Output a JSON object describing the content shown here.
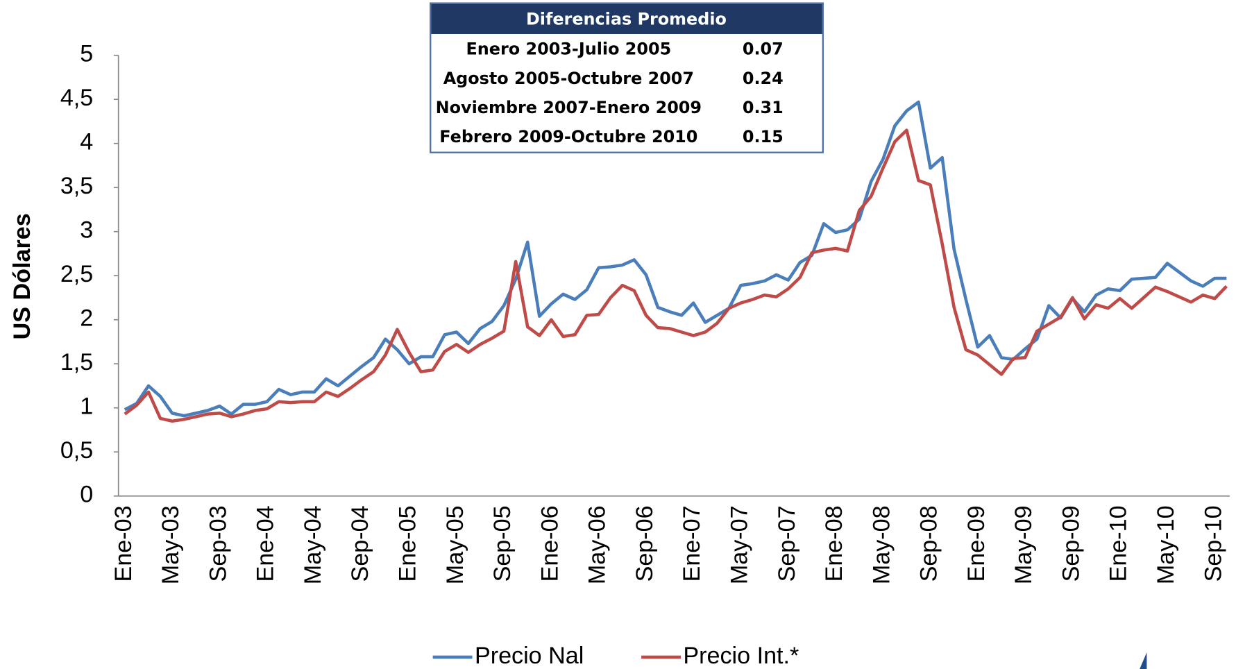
{
  "chart_data": {
    "type": "line",
    "ylabel": "US Dólares",
    "categories": [
      "Ene-03",
      null,
      null,
      null,
      "May-03",
      null,
      null,
      null,
      "Sep-03",
      null,
      null,
      null,
      "Ene-04",
      null,
      null,
      null,
      "May-04",
      null,
      null,
      null,
      "Sep-04",
      null,
      null,
      null,
      "Ene-05",
      null,
      null,
      null,
      "May-05",
      null,
      null,
      null,
      "Sep-05",
      null,
      null,
      null,
      "Ene-06",
      null,
      null,
      null,
      "May-06",
      null,
      null,
      null,
      "Sep-06",
      null,
      null,
      null,
      "Ene-07",
      null,
      null,
      null,
      "May-07",
      null,
      null,
      null,
      "Sep-07",
      null,
      null,
      null,
      "Ene-08",
      null,
      null,
      null,
      "May-08",
      null,
      null,
      null,
      "Sep-08",
      null,
      null,
      null,
      "Ene-09",
      null,
      null,
      null,
      "May-09",
      null,
      null,
      null,
      "Sep-09",
      null,
      null,
      null,
      "Ene-10",
      null,
      null,
      null,
      "May-10",
      null,
      null,
      null,
      "Sep-10",
      null
    ],
    "series": [
      {
        "name": "Precio Nal",
        "color": "#4a7ebb",
        "values": [
          0.98,
          1.05,
          1.25,
          1.13,
          0.94,
          0.91,
          0.94,
          0.97,
          1.02,
          0.93,
          1.04,
          1.04,
          1.07,
          1.21,
          1.15,
          1.18,
          1.18,
          1.33,
          1.25,
          1.36,
          1.47,
          1.57,
          1.78,
          1.66,
          1.5,
          1.58,
          1.58,
          1.83,
          1.86,
          1.73,
          1.9,
          1.98,
          2.16,
          2.46,
          2.88,
          2.04,
          2.18,
          2.29,
          2.23,
          2.34,
          2.59,
          2.6,
          2.62,
          2.68,
          2.51,
          2.14,
          2.09,
          2.05,
          2.19,
          1.97,
          2.05,
          2.13,
          2.39,
          2.41,
          2.44,
          2.51,
          2.45,
          2.65,
          2.73,
          3.09,
          2.99,
          3.02,
          3.14,
          3.57,
          3.82,
          4.2,
          4.37,
          4.47,
          3.72,
          3.84,
          2.8,
          2.23,
          1.69,
          1.82,
          1.57,
          1.55,
          1.67,
          1.78,
          2.16,
          2.02,
          2.24,
          2.09,
          2.28,
          2.35,
          2.33,
          2.46,
          2.47,
          2.48,
          2.64,
          2.54,
          2.44,
          2.38,
          2.47,
          2.47
        ]
      },
      {
        "name": "Precio Int.*",
        "color": "#be4b48",
        "values": [
          0.93,
          1.03,
          1.18,
          0.88,
          0.85,
          0.87,
          0.9,
          0.93,
          0.94,
          0.9,
          0.93,
          0.97,
          0.99,
          1.07,
          1.06,
          1.07,
          1.07,
          1.18,
          1.13,
          1.22,
          1.32,
          1.41,
          1.6,
          1.89,
          1.63,
          1.41,
          1.43,
          1.64,
          1.72,
          1.63,
          1.72,
          1.79,
          1.87,
          2.66,
          1.92,
          1.82,
          2.0,
          1.81,
          1.83,
          2.05,
          2.06,
          2.25,
          2.39,
          2.33,
          2.05,
          1.91,
          1.9,
          1.86,
          1.82,
          1.86,
          1.96,
          2.13,
          2.19,
          2.23,
          2.28,
          2.26,
          2.35,
          2.48,
          2.76,
          2.79,
          2.81,
          2.78,
          3.24,
          3.4,
          3.72,
          4.02,
          4.15,
          3.58,
          3.53,
          2.86,
          2.14,
          1.66,
          1.6,
          1.49,
          1.38,
          1.56,
          1.57,
          1.87,
          1.95,
          2.03,
          2.25,
          2.01,
          2.17,
          2.13,
          2.24,
          2.13,
          2.25,
          2.37,
          2.32,
          2.26,
          2.2,
          2.28,
          2.24,
          2.38
        ]
      }
    ],
    "ylim": [
      0,
      5
    ],
    "yticks": [
      0,
      {
        "value": 0.5,
        "label": "0,5"
      },
      1,
      {
        "value": 1.5,
        "label": "1,5"
      },
      2,
      {
        "value": 2.5,
        "label": "2,5"
      },
      3,
      {
        "value": 3.5,
        "label": "3,5"
      },
      4,
      {
        "value": 4.5,
        "label": "4,5"
      },
      5
    ],
    "legend": "bottom",
    "table": {
      "title": "Diferencias Promedio",
      "rows": [
        [
          "Enero 2003-Julio 2005",
          0.07
        ],
        [
          "Agosto 2005-Octubre 2007",
          0.24
        ],
        [
          "Noviembre 2007-Enero 2009",
          0.31
        ],
        [
          "Febrero 2009-Octubre 2010",
          0.15
        ]
      ]
    }
  }
}
